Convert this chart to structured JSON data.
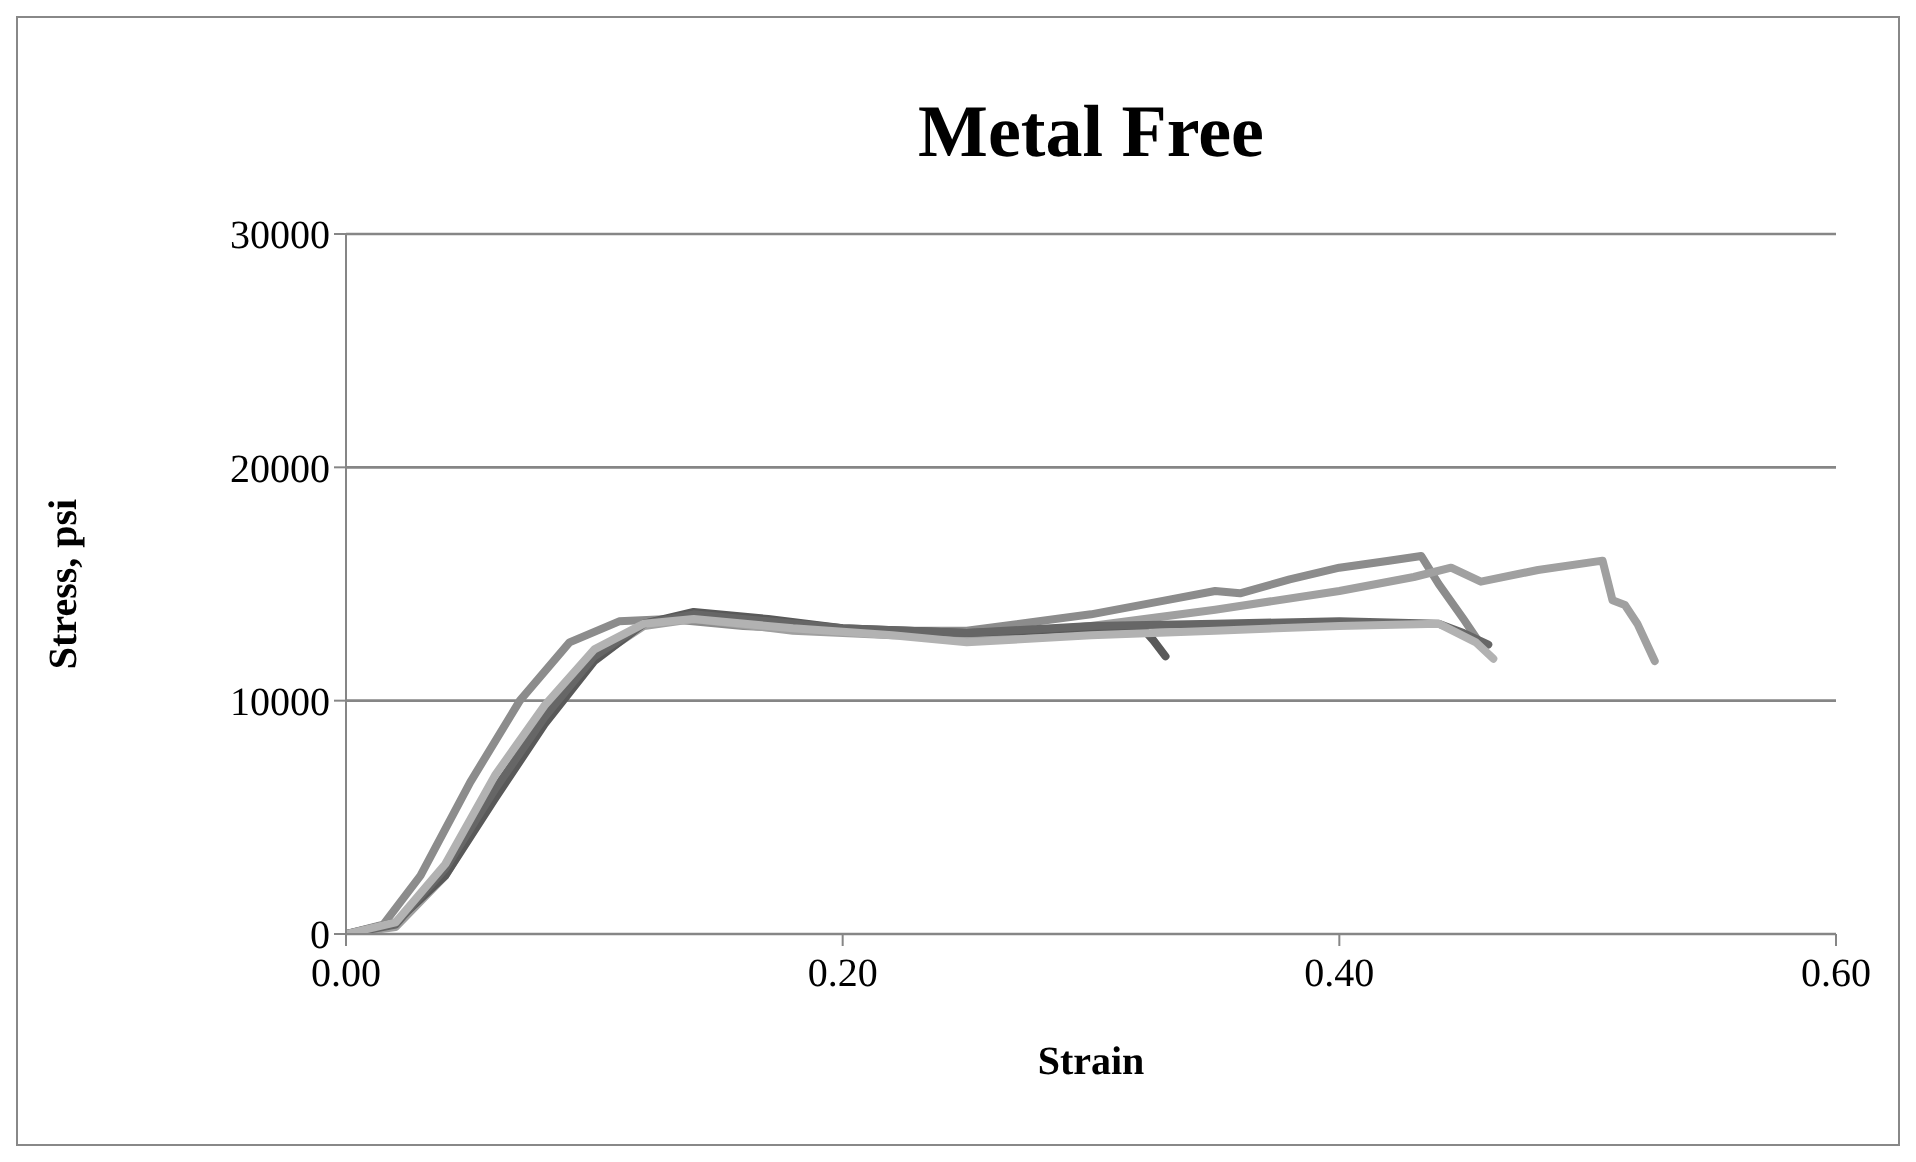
{
  "chart_data": {
    "type": "line",
    "title": "Metal Free",
    "xlabel": "Strain",
    "ylabel": "Stress, psi",
    "xlim": [
      0,
      0.6
    ],
    "xticks": [
      {
        "value": 0,
        "label": "0.00"
      },
      {
        "value": 0.2,
        "label": "0.20"
      },
      {
        "value": 0.4,
        "label": "0.40"
      },
      {
        "value": 0.6,
        "label": "0.60"
      }
    ],
    "ylim": [
      0,
      30000
    ],
    "yticks": [
      0,
      10000,
      20000,
      30000
    ],
    "grid": "y",
    "marker": "none",
    "line_style": "solid",
    "series": [
      {
        "color": "#8c8c8c",
        "x": [
          0,
          0.015,
          0.03,
          0.05,
          0.07,
          0.09,
          0.11,
          0.13,
          0.16,
          0.2,
          0.25,
          0.3,
          0.33,
          0.35,
          0.36,
          0.38,
          0.4,
          0.42,
          0.433,
          0.44,
          0.45,
          0.457
        ],
        "values": [
          0,
          400,
          2500,
          6500,
          10000,
          12500,
          13400,
          13500,
          13200,
          13000,
          13000,
          13700,
          14300,
          14700,
          14600,
          15200,
          15700,
          16000,
          16200,
          15000,
          13500,
          12400
        ]
      },
      {
        "color": "#a0a0a0",
        "x": [
          0,
          0.02,
          0.04,
          0.06,
          0.08,
          0.1,
          0.12,
          0.14,
          0.18,
          0.22,
          0.26,
          0.3,
          0.35,
          0.4,
          0.43,
          0.445,
          0.457,
          0.48,
          0.506,
          0.51,
          0.515,
          0.52,
          0.527
        ],
        "values": [
          0,
          300,
          2500,
          6000,
          9300,
          11800,
          13200,
          13500,
          13000,
          12800,
          12800,
          13200,
          13900,
          14700,
          15300,
          15700,
          15100,
          15600,
          16000,
          14300,
          14100,
          13300,
          11700
        ]
      },
      {
        "color": "#595959",
        "x": [
          0,
          0.02,
          0.04,
          0.06,
          0.08,
          0.1,
          0.12,
          0.14,
          0.17,
          0.2,
          0.25,
          0.3,
          0.32,
          0.325,
          0.33
        ],
        "values": [
          0,
          500,
          2500,
          5800,
          9000,
          11700,
          13300,
          13800,
          13500,
          13100,
          12900,
          13100,
          13200,
          12600,
          11900
        ]
      },
      {
        "color": "#666666",
        "x": [
          0,
          0.02,
          0.04,
          0.06,
          0.08,
          0.1,
          0.12,
          0.14,
          0.17,
          0.2,
          0.25,
          0.3,
          0.35,
          0.4,
          0.44,
          0.45,
          0.46
        ],
        "values": [
          0,
          400,
          2800,
          6200,
          9300,
          11900,
          13300,
          13700,
          13400,
          13100,
          12900,
          13200,
          13300,
          13400,
          13300,
          12900,
          12400
        ]
      },
      {
        "color": "#b2b2b2",
        "x": [
          0,
          0.02,
          0.04,
          0.06,
          0.08,
          0.1,
          0.12,
          0.14,
          0.18,
          0.22,
          0.25,
          0.3,
          0.35,
          0.4,
          0.44,
          0.455,
          0.462
        ],
        "values": [
          0,
          500,
          3000,
          6800,
          9800,
          12200,
          13300,
          13500,
          13100,
          12800,
          12500,
          12800,
          13000,
          13200,
          13300,
          12500,
          11800
        ]
      }
    ]
  }
}
